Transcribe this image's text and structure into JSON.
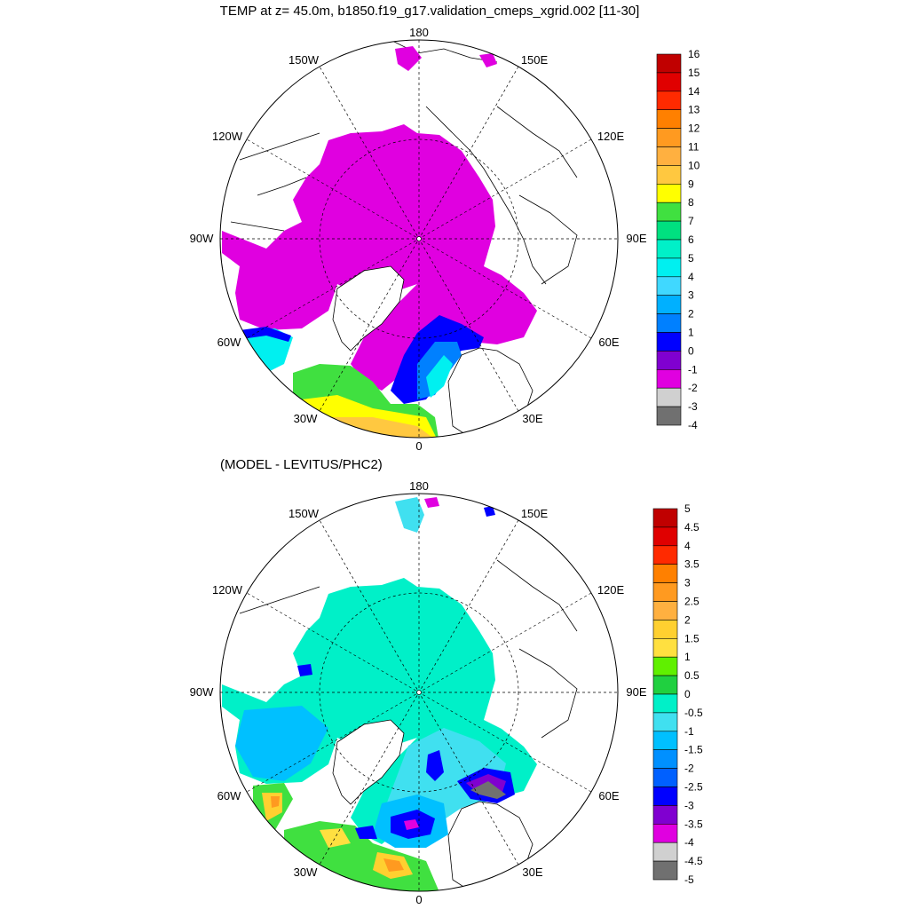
{
  "title": "TEMP at z=  45.0m, b1850.f19_g17.validation_cmeps_xgrid.002 [11-30]",
  "subtitle": "(MODEL - LEVITUS/PHC2)",
  "lon_labels": [
    "180",
    "150E",
    "120E",
    "90E",
    "60E",
    "30E",
    "0",
    "30W",
    "60W",
    "90W",
    "120W",
    "150W"
  ],
  "colorbar_top": {
    "labels": [
      "16",
      "15",
      "14",
      "13",
      "12",
      "11",
      "10",
      "9",
      "8",
      "7",
      "6",
      "5",
      "4",
      "3",
      "2",
      "1",
      "0",
      "-1",
      "-2",
      "-3",
      "-4"
    ],
    "colors": [
      "#c00000",
      "#e00000",
      "#ff2a00",
      "#ff8000",
      "#ff9a20",
      "#ffb040",
      "#ffc840",
      "#ffff00",
      "#40e040",
      "#00e080",
      "#00f0c8",
      "#00f0f0",
      "#40d8ff",
      "#00b0ff",
      "#0080ff",
      "#0000ff",
      "#8000d0",
      "#e000e0",
      "#d0d0d0",
      "#707070"
    ]
  },
  "colorbar_diff": {
    "labels": [
      "5",
      "4.5",
      "4",
      "3.5",
      "3",
      "2.5",
      "2",
      "1.5",
      "1",
      "0.5",
      "0",
      "-0.5",
      "-1",
      "-1.5",
      "-2",
      "-2.5",
      "-3",
      "-3.5",
      "-4",
      "-4.5",
      "-5"
    ],
    "colors": [
      "#c00000",
      "#e00000",
      "#ff2a00",
      "#ff8000",
      "#ff9a20",
      "#ffb040",
      "#ffd030",
      "#ffe040",
      "#60f000",
      "#20d040",
      "#00f0c8",
      "#40e0f0",
      "#00c0ff",
      "#0090ff",
      "#0060ff",
      "#0000ff",
      "#8000d0",
      "#e000e0",
      "#d0d0d0",
      "#707070"
    ]
  }
}
